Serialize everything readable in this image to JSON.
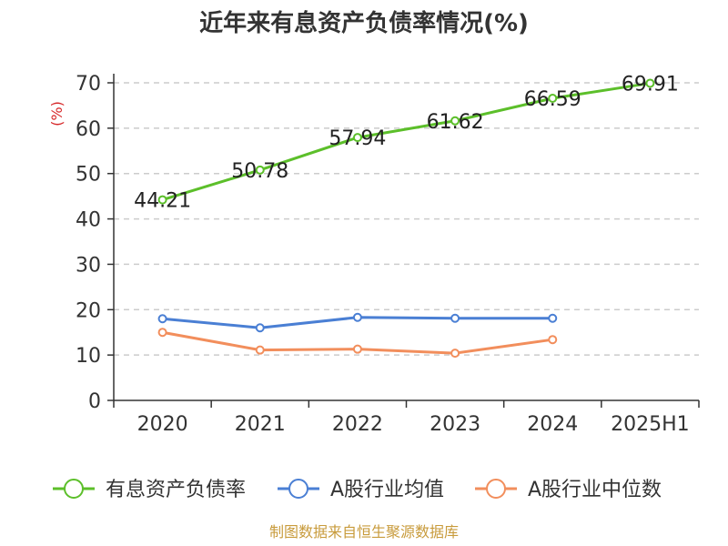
{
  "chart_data": {
    "type": "line",
    "title": "近年来有息资产负债率情况(%)",
    "ylabel": "(%)",
    "xlabel": "",
    "categories": [
      "2020",
      "2021",
      "2022",
      "2023",
      "2024",
      "2025H1"
    ],
    "ylim": [
      0,
      70
    ],
    "yticks": [
      0,
      10,
      20,
      30,
      40,
      50,
      60,
      70
    ],
    "grid": true,
    "legend_position": "bottom",
    "series": [
      {
        "name": "有息资产负债率",
        "color": "#5cbf2a",
        "values": [
          44.21,
          50.78,
          57.94,
          61.62,
          66.59,
          69.91
        ],
        "labels": [
          "44.21",
          "50.78",
          "57.94",
          "61.62",
          "66.59",
          "69.91"
        ]
      },
      {
        "name": "A股行业均值",
        "color": "#4a7fd4",
        "values": [
          18.0,
          16.0,
          18.3,
          18.1,
          18.1,
          null
        ]
      },
      {
        "name": "A股行业中位数",
        "color": "#f28e5c",
        "values": [
          15.0,
          11.1,
          11.3,
          10.4,
          13.4,
          null
        ]
      }
    ],
    "source": "制图数据来自恒生聚源数据库"
  }
}
